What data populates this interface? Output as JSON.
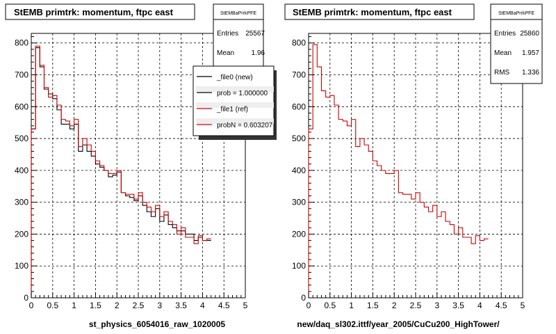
{
  "footer_text": "",
  "panels": [
    {
      "title": "StEMB primtrk: momentum, ftpc east",
      "stats": {
        "name": "StEMBaPrrkPFE",
        "rows": [
          {
            "label": "Entries",
            "value": "25567"
          },
          {
            "label": "Mean",
            "value": "1.96"
          }
        ]
      },
      "legend": [
        {
          "label": "_file0 (new)",
          "color": "#000000"
        },
        {
          "label": "prob = 1.000000",
          "color": "#000000"
        },
        {
          "label": "_file1 (ref)",
          "color": "#cc0000"
        },
        {
          "label": "probN = 0.603207",
          "color": "#cc0000"
        }
      ],
      "xlabel": "st_physics_6054016_raw_1020005"
    },
    {
      "title": "StEMB primtrk: momentum, ftpc east",
      "stats": {
        "name": "StEMBaPrrkPFE",
        "rows": [
          {
            "label": "Entries",
            "value": "25860"
          },
          {
            "label": "Mean",
            "value": "1.957"
          },
          {
            "label": "RMS",
            "value": "1.336"
          }
        ]
      },
      "legend": [],
      "xlabel": "new/daq_sl302.ittf/year_2005/CuCu200_HighTower/"
    }
  ],
  "chart_data": [
    {
      "type": "line",
      "title": "StEMB primtrk: momentum, ftpc east",
      "xlabel": "st_physics_6054016_raw_1020005",
      "ylabel": "",
      "xlim": [
        0,
        5
      ],
      "ylim": [
        0,
        830
      ],
      "x_ticks": [
        0,
        0.5,
        1,
        1.5,
        2,
        2.5,
        3,
        3.5,
        4,
        4.5,
        5
      ],
      "x_tick_labels": [
        "0",
        "0.5",
        "1",
        "1.5",
        "2",
        "2.5",
        "3",
        "3.5",
        "4",
        "4.5",
        "5"
      ],
      "y_ticks": [
        0,
        100,
        200,
        300,
        400,
        500,
        600,
        700,
        800
      ],
      "y_tick_labels": [
        "0",
        "100",
        "200",
        "300",
        "400",
        "500",
        "600",
        "700",
        "800"
      ],
      "grid": true,
      "bin_width": 0.1,
      "series": [
        {
          "name": "_file0 (new)",
          "color": "#000000",
          "values": [
            530,
            785,
            725,
            655,
            640,
            625,
            590,
            545,
            545,
            530,
            545,
            460,
            480,
            460,
            445,
            420,
            410,
            400,
            380,
            385,
            395,
            330,
            320,
            315,
            305,
            320,
            290,
            270,
            255,
            280,
            240,
            260,
            230,
            220,
            210,
            210,
            200,
            200,
            180,
            190,
            180,
            180
          ]
        },
        {
          "name": "_file1 (ref)",
          "color": "#cc0000",
          "values": [
            530,
            790,
            730,
            660,
            630,
            635,
            605,
            560,
            555,
            540,
            560,
            475,
            500,
            480,
            460,
            430,
            415,
            400,
            390,
            390,
            400,
            330,
            325,
            325,
            310,
            330,
            300,
            285,
            270,
            290,
            255,
            270,
            240,
            230,
            200,
            220,
            190,
            190,
            170,
            195,
            180,
            185
          ]
        }
      ]
    },
    {
      "type": "line",
      "title": "StEMB primtrk: momentum, ftpc east",
      "xlabel": "new/daq_sl302.ittf/year_2005/CuCu200_HighTower/",
      "ylabel": "",
      "xlim": [
        0,
        5
      ],
      "ylim": [
        0,
        830
      ],
      "x_ticks": [
        0,
        0.5,
        1,
        1.5,
        2,
        2.5,
        3,
        3.5,
        4,
        4.5,
        5
      ],
      "x_tick_labels": [
        "0",
        "0.5",
        "1",
        "1.5",
        "2",
        "2.5",
        "3",
        "3.5",
        "4",
        "4.5",
        "5"
      ],
      "y_ticks": [
        0,
        100,
        200,
        300,
        400,
        500,
        600,
        700,
        800
      ],
      "y_tick_labels": [
        "0",
        "100",
        "200",
        "300",
        "400",
        "500",
        "600",
        "700",
        "800"
      ],
      "grid": true,
      "bin_width": 0.1,
      "series": [
        {
          "name": "",
          "color": "#cc0000",
          "values": [
            530,
            795,
            725,
            650,
            630,
            635,
            605,
            560,
            555,
            540,
            560,
            475,
            500,
            480,
            460,
            430,
            415,
            400,
            390,
            390,
            400,
            330,
            325,
            325,
            310,
            330,
            300,
            285,
            270,
            290,
            255,
            270,
            240,
            230,
            200,
            220,
            190,
            190,
            170,
            195,
            180,
            185
          ]
        }
      ]
    }
  ]
}
